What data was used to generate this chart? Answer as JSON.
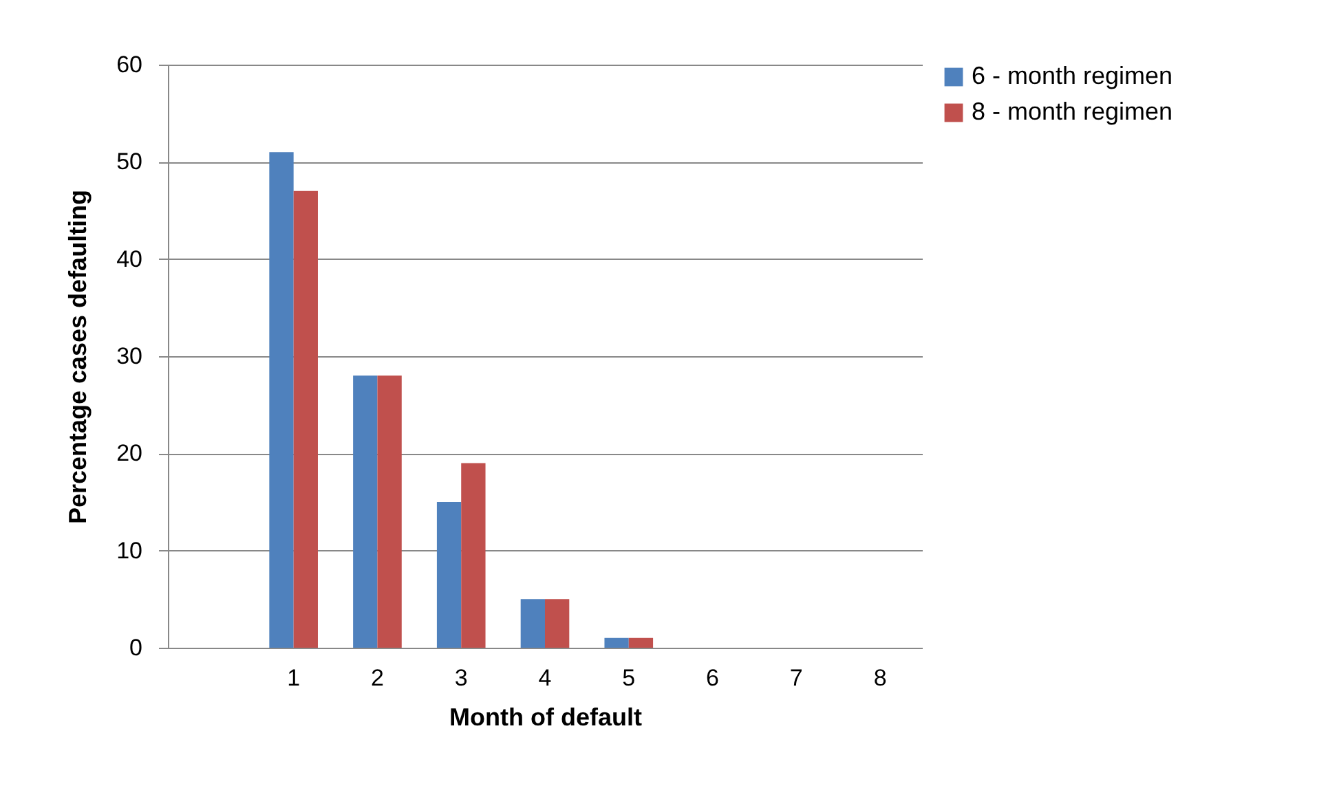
{
  "chart_data": {
    "type": "bar",
    "xlabel": "Month of default",
    "ylabel": "Percentage cases defaulting",
    "categories": [
      null,
      "1",
      "2",
      "3",
      "4",
      "5",
      "6",
      "7",
      "8"
    ],
    "series": [
      {
        "name": "6 - month regimen",
        "color": "#4f81bd",
        "values": [
          null,
          51,
          28,
          15,
          5,
          1,
          0,
          0,
          0
        ]
      },
      {
        "name": "8 - month regimen",
        "color": "#c0504d",
        "values": [
          null,
          47,
          28,
          19,
          5,
          1,
          0,
          0,
          0
        ]
      }
    ],
    "ylim": [
      0,
      60
    ],
    "yticks": [
      0,
      10,
      20,
      30,
      40,
      50,
      60
    ],
    "grid": "y",
    "legend": "right"
  }
}
